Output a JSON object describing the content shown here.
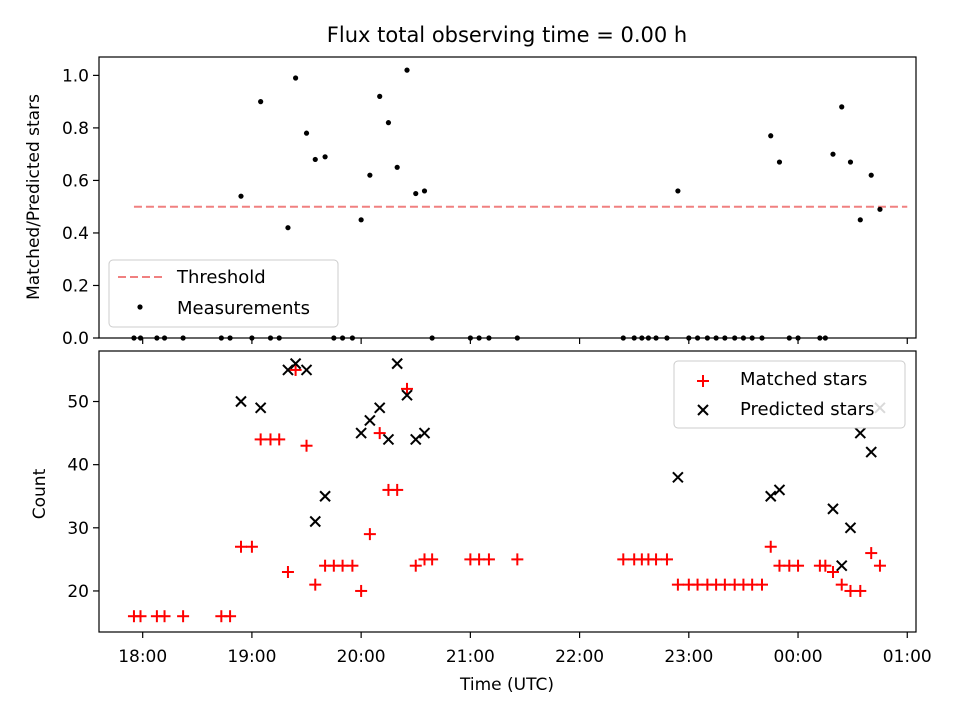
{
  "chart_data": [
    {
      "type": "scatter",
      "title": "Flux total observing time = 0.00 h",
      "xlabel": "",
      "ylabel": "Matched/Predicted stars",
      "ylim": [
        0,
        1.07
      ],
      "x_ticks": [
        "18:00",
        "19:00",
        "20:00",
        "21:00",
        "22:00",
        "23:00",
        "00:00",
        "01:00"
      ],
      "y_ticks": [
        "0.0",
        "0.2",
        "0.4",
        "0.6",
        "0.8",
        "1.0"
      ],
      "legend": {
        "position": "lower-left",
        "entries": [
          "Threshold",
          "Measurements"
        ]
      },
      "threshold": {
        "name": "Threshold",
        "value": 0.5,
        "color": "#f08080",
        "x_range": [
          17.92,
          25.0
        ]
      },
      "series": [
        {
          "name": "Measurements",
          "color": "#000000",
          "marker": "dot",
          "points": [
            [
              17.92,
              0.0
            ],
            [
              17.98,
              0.0
            ],
            [
              18.13,
              0.0
            ],
            [
              18.2,
              0.0
            ],
            [
              18.37,
              0.0
            ],
            [
              18.72,
              0.0
            ],
            [
              18.8,
              0.0
            ],
            [
              18.9,
              0.54
            ],
            [
              19.0,
              0.0
            ],
            [
              19.08,
              0.9
            ],
            [
              19.17,
              0.0
            ],
            [
              19.25,
              0.0
            ],
            [
              19.33,
              0.42
            ],
            [
              19.4,
              0.99
            ],
            [
              19.5,
              0.78
            ],
            [
              19.58,
              0.68
            ],
            [
              19.67,
              0.69
            ],
            [
              19.75,
              0.0
            ],
            [
              19.83,
              0.0
            ],
            [
              19.92,
              0.0
            ],
            [
              20.0,
              0.45
            ],
            [
              20.08,
              0.62
            ],
            [
              20.17,
              0.92
            ],
            [
              20.25,
              0.82
            ],
            [
              20.33,
              0.65
            ],
            [
              20.42,
              1.02
            ],
            [
              20.5,
              0.55
            ],
            [
              20.58,
              0.56
            ],
            [
              20.65,
              0.0
            ],
            [
              21.0,
              0.0
            ],
            [
              21.08,
              0.0
            ],
            [
              21.17,
              0.0
            ],
            [
              21.43,
              0.0
            ],
            [
              22.4,
              0.0
            ],
            [
              22.5,
              0.0
            ],
            [
              22.57,
              0.0
            ],
            [
              22.63,
              0.0
            ],
            [
              22.7,
              0.0
            ],
            [
              22.8,
              0.0
            ],
            [
              22.9,
              0.56
            ],
            [
              23.0,
              0.0
            ],
            [
              23.08,
              0.0
            ],
            [
              23.17,
              0.0
            ],
            [
              23.25,
              0.0
            ],
            [
              23.33,
              0.0
            ],
            [
              23.42,
              0.0
            ],
            [
              23.5,
              0.0
            ],
            [
              23.58,
              0.0
            ],
            [
              23.67,
              0.0
            ],
            [
              23.75,
              0.77
            ],
            [
              23.83,
              0.67
            ],
            [
              23.92,
              0.0
            ],
            [
              24.0,
              0.0
            ],
            [
              24.2,
              0.0
            ],
            [
              24.25,
              0.0
            ],
            [
              24.32,
              0.7
            ],
            [
              24.4,
              0.88
            ],
            [
              24.48,
              0.67
            ],
            [
              24.57,
              0.45
            ],
            [
              24.67,
              0.62
            ],
            [
              24.75,
              0.49
            ]
          ]
        }
      ]
    },
    {
      "type": "scatter",
      "title": "",
      "xlabel": "Time (UTC)",
      "ylabel": "Count",
      "ylim": [
        13.5,
        58
      ],
      "x_ticks": [
        "18:00",
        "19:00",
        "20:00",
        "21:00",
        "22:00",
        "23:00",
        "00:00",
        "01:00"
      ],
      "y_ticks": [
        "20",
        "30",
        "40",
        "50"
      ],
      "legend": {
        "position": "upper-right",
        "entries": [
          "Matched stars",
          "Predicted stars"
        ]
      },
      "series": [
        {
          "name": "Matched stars",
          "color": "#ff0000",
          "marker": "plus",
          "points": [
            [
              17.92,
              16
            ],
            [
              17.98,
              16
            ],
            [
              18.13,
              16
            ],
            [
              18.2,
              16
            ],
            [
              18.37,
              16
            ],
            [
              18.72,
              16
            ],
            [
              18.8,
              16
            ],
            [
              18.9,
              27
            ],
            [
              19.0,
              27
            ],
            [
              19.08,
              44
            ],
            [
              19.17,
              44
            ],
            [
              19.25,
              44
            ],
            [
              19.33,
              23
            ],
            [
              19.4,
              55
            ],
            [
              19.5,
              43
            ],
            [
              19.58,
              21
            ],
            [
              19.67,
              24
            ],
            [
              19.75,
              24
            ],
            [
              19.83,
              24
            ],
            [
              19.92,
              24
            ],
            [
              20.0,
              20
            ],
            [
              20.08,
              29
            ],
            [
              20.17,
              45
            ],
            [
              20.25,
              36
            ],
            [
              20.33,
              36
            ],
            [
              20.42,
              52
            ],
            [
              20.5,
              24
            ],
            [
              20.58,
              25
            ],
            [
              20.65,
              25
            ],
            [
              21.0,
              25
            ],
            [
              21.08,
              25
            ],
            [
              21.17,
              25
            ],
            [
              21.43,
              25
            ],
            [
              22.4,
              25
            ],
            [
              22.5,
              25
            ],
            [
              22.57,
              25
            ],
            [
              22.63,
              25
            ],
            [
              22.7,
              25
            ],
            [
              22.8,
              25
            ],
            [
              22.9,
              21
            ],
            [
              23.0,
              21
            ],
            [
              23.08,
              21
            ],
            [
              23.17,
              21
            ],
            [
              23.25,
              21
            ],
            [
              23.33,
              21
            ],
            [
              23.42,
              21
            ],
            [
              23.5,
              21
            ],
            [
              23.58,
              21
            ],
            [
              23.67,
              21
            ],
            [
              23.75,
              27
            ],
            [
              23.83,
              24
            ],
            [
              23.92,
              24
            ],
            [
              24.0,
              24
            ],
            [
              24.2,
              24
            ],
            [
              24.25,
              24
            ],
            [
              24.32,
              23
            ],
            [
              24.4,
              21
            ],
            [
              24.48,
              20
            ],
            [
              24.57,
              20
            ],
            [
              24.67,
              26
            ],
            [
              24.75,
              24
            ]
          ]
        },
        {
          "name": "Predicted stars",
          "color": "#000000",
          "marker": "x",
          "points": [
            [
              18.9,
              50
            ],
            [
              19.08,
              49
            ],
            [
              19.33,
              55
            ],
            [
              19.4,
              56
            ],
            [
              19.5,
              55
            ],
            [
              19.58,
              31
            ],
            [
              19.67,
              35
            ],
            [
              20.0,
              45
            ],
            [
              20.08,
              47
            ],
            [
              20.17,
              49
            ],
            [
              20.25,
              44
            ],
            [
              20.33,
              56
            ],
            [
              20.42,
              51
            ],
            [
              20.5,
              44
            ],
            [
              20.58,
              45
            ],
            [
              22.9,
              38
            ],
            [
              23.75,
              35
            ],
            [
              23.83,
              36
            ],
            [
              24.32,
              33
            ],
            [
              24.4,
              24
            ],
            [
              24.48,
              30
            ],
            [
              24.57,
              45
            ],
            [
              24.67,
              42
            ],
            [
              24.75,
              49
            ]
          ]
        }
      ]
    }
  ]
}
